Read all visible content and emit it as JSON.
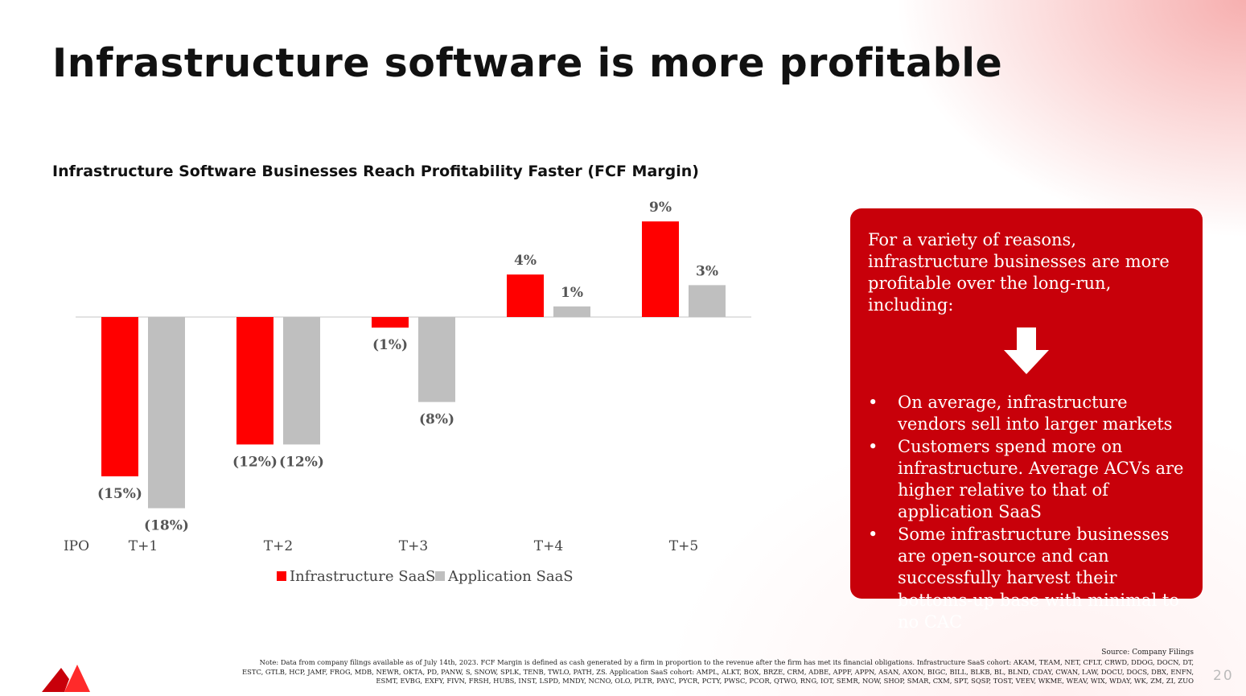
{
  "slide": {
    "title": "Infrastructure software is more profitable",
    "page_number": "20"
  },
  "chart_data": {
    "type": "bar",
    "title": "Infrastructure Software Businesses Reach Profitability Faster (FCF Margin)",
    "x_origin_label": "IPO",
    "categories": [
      "T+1",
      "T+2",
      "T+3",
      "T+4",
      "T+5"
    ],
    "series": [
      {
        "name": "Infrastructure SaaS",
        "color": "#ff0000",
        "values": [
          -15,
          -12,
          -1,
          4,
          9
        ],
        "labels": [
          "(15%)",
          "(12%)",
          "(1%)",
          "4%",
          "9%"
        ]
      },
      {
        "name": "Application SaaS",
        "color": "#bfbfbf",
        "values": [
          -18,
          -12,
          -8,
          1,
          3
        ],
        "labels": [
          "(18%)",
          "(12%)",
          "(8%)",
          "1%",
          "3%"
        ]
      }
    ],
    "ylim": [
      -18,
      9
    ],
    "grid": false,
    "legend": "bottom"
  },
  "callout": {
    "intro": "For a variety of reasons, infrastructure businesses are more profitable over the long-run, including:",
    "arrow_icon": "down-arrow-icon",
    "bullet_char": "•",
    "bullets": [
      "On average, infrastructure vendors sell into larger markets",
      "Customers spend more on infrastructure. Average ACVs are higher relative to that of application SaaS",
      "Some infrastructure businesses are open-source and can successfully harvest their bottoms-up base with minimal to no CAC"
    ]
  },
  "footer": {
    "source": "Source: Company Filings",
    "note": "Note: Data from company filings available as of July 14th, 2023. FCF Margin is defined as cash generated by a firm in proportion to the revenue after the firm has met its financial obligations. Infrastructure SaaS cohort: AKAM, TEAM, NET, CFLT, CRWD, DDOG, DOCN, DT, ESTC, GTLB, HCP, JAMF, FROG, MDB, NEWR, OKTA, PD, PANW, S, SNOW, SPLK, TENB, TWLO, PATH, ZS. Application SaaS cohort: AMPL, ALKT, BOX, BRZE, CRM, ADBE, APPF, APPN, ASAN, AXON, BIGC, BILL, BLKB, BL, BLND, CDAY, CWAN, LAW, DOCU, DOCS, DBX, ENFN, ESMT, EVBG, EXFY, FIVN, FRSH, HUBS, INST, LSPD, MNDY, NCNO, OLO, PLTR, PAYC, PYCR, PCTY, PWSC, PCOR, QTWO, RNG, IOT, SEMR, NOW, SHOP, SMAR, CXM, SPT, SQSP, TOST, VEEV, WKME, WEAV, WIX, WDAY, WK, ZM, ZI, ZUO"
  },
  "colors": {
    "accent": "#ff0000",
    "secondary": "#bfbfbf",
    "callout_bg": "#c8000a"
  }
}
